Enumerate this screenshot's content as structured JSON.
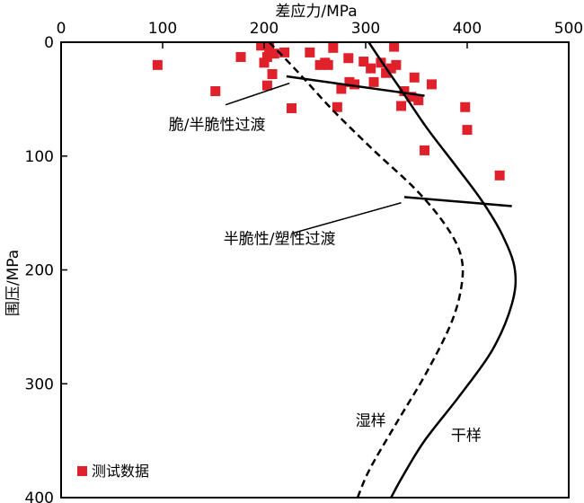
{
  "chart_data": {
    "type": "scatter",
    "xlabel": "差应力/MPa",
    "ylabel": "围压/MPa",
    "xlim": [
      0,
      500
    ],
    "ylim": [
      0,
      400
    ],
    "y_inverted": true,
    "x_axis_position": "top",
    "x_ticks": [
      0,
      100,
      200,
      300,
      400,
      500
    ],
    "y_ticks": [
      0,
      100,
      200,
      300,
      400
    ],
    "marker_color": "#e0202a",
    "legend": {
      "position": "bottom-left",
      "label": "测试数据"
    },
    "series": [
      {
        "name": "测试数据",
        "type": "scatter",
        "points": [
          [
            95,
            20
          ],
          [
            152,
            43
          ],
          [
            177,
            13
          ],
          [
            197,
            3
          ],
          [
            203,
            13
          ],
          [
            205,
            5
          ],
          [
            200,
            18
          ],
          [
            203,
            38
          ],
          [
            210,
            10
          ],
          [
            208,
            28
          ],
          [
            220,
            9
          ],
          [
            227,
            58
          ],
          [
            245,
            9
          ],
          [
            255,
            20
          ],
          [
            260,
            18
          ],
          [
            263,
            20
          ],
          [
            268,
            5
          ],
          [
            272,
            57
          ],
          [
            276,
            41
          ],
          [
            283,
            14
          ],
          [
            284,
            35
          ],
          [
            289,
            37
          ],
          [
            298,
            17
          ],
          [
            305,
            23
          ],
          [
            308,
            35
          ],
          [
            315,
            18
          ],
          [
            320,
            27
          ],
          [
            325,
            23
          ],
          [
            328,
            4
          ],
          [
            330,
            20
          ],
          [
            338,
            43
          ],
          [
            335,
            56
          ],
          [
            345,
            48
          ],
          [
            348,
            31
          ],
          [
            352,
            51
          ],
          [
            365,
            37
          ],
          [
            358,
            95
          ],
          [
            398,
            57
          ],
          [
            400,
            77
          ],
          [
            432,
            117
          ]
        ]
      },
      {
        "name": "干样",
        "type": "line",
        "style": "solid",
        "points": [
          [
            303,
            0
          ],
          [
            318,
            20
          ],
          [
            335,
            42
          ],
          [
            360,
            75
          ],
          [
            390,
            110
          ],
          [
            415,
            140
          ],
          [
            435,
            170
          ],
          [
            447,
            200
          ],
          [
            444,
            230
          ],
          [
            425,
            270
          ],
          [
            393,
            310
          ],
          [
            358,
            350
          ],
          [
            336,
            382
          ],
          [
            325,
            400
          ]
        ]
      },
      {
        "name": "湿样",
        "type": "line",
        "style": "dashed",
        "points": [
          [
            205,
            0
          ],
          [
            232,
            25
          ],
          [
            268,
            60
          ],
          [
            308,
            95
          ],
          [
            350,
            130
          ],
          [
            378,
            160
          ],
          [
            393,
            185
          ],
          [
            395,
            210
          ],
          [
            385,
            245
          ],
          [
            360,
            290
          ],
          [
            330,
            335
          ],
          [
            304,
            375
          ],
          [
            292,
            400
          ]
        ]
      },
      {
        "name": "脆/半脆性过渡",
        "type": "line",
        "style": "solid",
        "points": [
          [
            222,
            30
          ],
          [
            358,
            47
          ]
        ]
      },
      {
        "name": "半脆性/塑性过渡",
        "type": "line",
        "style": "solid",
        "points": [
          [
            338,
            136
          ],
          [
            444,
            144
          ]
        ]
      }
    ],
    "annotations": [
      {
        "text": "脆/半脆性过渡",
        "x": 106,
        "y": 77,
        "pointer": [
          [
            162,
            55
          ],
          [
            225,
            36
          ]
        ]
      },
      {
        "text": "半脆性/塑性过渡",
        "x": 160,
        "y": 177,
        "pointer": [
          [
            227,
            168
          ],
          [
            335,
            141
          ]
        ]
      },
      {
        "text": "湿样",
        "x": 290,
        "y": 337
      },
      {
        "text": "干样",
        "x": 384,
        "y": 350
      }
    ]
  }
}
